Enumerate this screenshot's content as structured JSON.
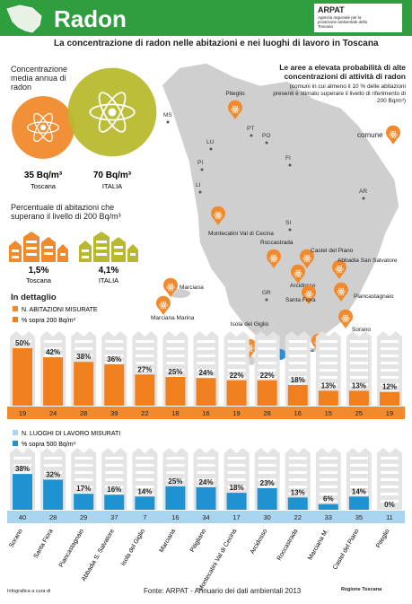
{
  "header": {
    "title": "Radon",
    "logo": "ARPAT",
    "logo_text": "Agenzia regionale per la protezione ambientale della Toscana"
  },
  "subtitle": "La concentrazione di radon nelle abitazioni e nei luoghi di lavoro in Toscana",
  "concentration": {
    "title": "Concentrazione media annua di radon",
    "items": [
      {
        "label": "Toscana",
        "value": 35,
        "value_label": "35 Bq/m³",
        "color": "#f08a2c"
      },
      {
        "label": "ITALIA",
        "value": 70,
        "value_label": "70 Bq/m³",
        "color": "#b8b92e"
      }
    ]
  },
  "homes_over": {
    "title": "Percentuale di abitazioni che superano il livello di 200 Bq/m³",
    "items": [
      {
        "label": "Toscana",
        "value": 1.5,
        "value_label": "1,5%",
        "color": "#f08a2c"
      },
      {
        "label": "ITALIA",
        "value": 4.1,
        "value_label": "4,1%",
        "color": "#b8b92e"
      }
    ]
  },
  "map": {
    "title": "Le aree a elevata probabilità di alte concentrazioni di attività di radon",
    "note": "(comuni in cui almeno il 10 % delle abitazioni presenti è stimato superare il livello di riferimento di 200 Bq/m³)",
    "legend": "comune",
    "provinces": [
      "MS",
      "LU",
      "PT",
      "PO",
      "FI",
      "PI",
      "LI",
      "SI",
      "AR",
      "GR"
    ],
    "comuni": [
      "Piteglio",
      "Montecatini Val di Cecina",
      "Roccastrada",
      "Castel del Piano",
      "Abbadia San Salvatore",
      "Arcidosso",
      "Santa Fiora",
      "Piancastagnaio",
      "Sorano",
      "Pitigliano",
      "Isola del Giglio",
      "Marciana",
      "Marciana Marina"
    ]
  },
  "detail_title": "In dettaglio",
  "chart_data": [
    {
      "type": "bar",
      "counts_name": "N. ABITAZIONI MISURATE",
      "counts": [
        19,
        24,
        28,
        39,
        22,
        18,
        16,
        19,
        28,
        16,
        15,
        25,
        19
      ],
      "counts_color": "#f08a2c",
      "name": "% sopra 200 Bq/m³",
      "values": [
        50,
        42,
        38,
        36,
        27,
        25,
        24,
        22,
        22,
        18,
        13,
        13,
        12
      ],
      "value_labels": [
        "50%",
        "42%",
        "38%",
        "36%",
        "27%",
        "25%",
        "24%",
        "22%",
        "22%",
        "18%",
        "13%",
        "13%",
        "12%"
      ],
      "color": "#f07f1e",
      "ylim": [
        0,
        60
      ]
    },
    {
      "type": "bar",
      "counts_name": "N. LUOGHI DI LAVORO MISURATI",
      "counts": [
        40,
        28,
        29,
        37,
        7,
        16,
        34,
        17,
        30,
        22,
        33,
        35,
        11
      ],
      "counts_color": "#a9d5ef",
      "name": "% sopra 500 Bq/m³",
      "values": [
        38,
        32,
        17,
        16,
        14,
        25,
        24,
        18,
        23,
        13,
        6,
        14,
        0
      ],
      "value_labels": [
        "38%",
        "32%",
        "17%",
        "16%",
        "14%",
        "25%",
        "24%",
        "18%",
        "23%",
        "13%",
        "6%",
        "14%",
        "0%"
      ],
      "color": "#1f93d2",
      "ylim": [
        0,
        60
      ],
      "categories": [
        "Sorano",
        "Santa Fiora",
        "Piancastagnaio",
        "Abbadia S. Salvatore",
        "Isola del Giglio",
        "Marciana",
        "Pitigliano",
        "Montecatini Val di Cecina",
        "Arcidosso",
        "Roccastrada",
        "Marciana M.",
        "Castel del Piano",
        "Piteglio"
      ]
    }
  ],
  "footer": {
    "credit": "Infografica a cura di",
    "source": "Fonte: ARPAT - Annuario dei dati ambientali 2013",
    "region": "Regione Toscana"
  }
}
